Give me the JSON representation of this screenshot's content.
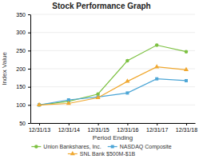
{
  "chart_data": {
    "type": "line",
    "title": "Stock Performance Graph",
    "xlabel": "Period Ending",
    "ylabel": "Index Value",
    "categories": [
      "12/31/13",
      "12/31/14",
      "12/31/15",
      "12/31/16",
      "12/31/17",
      "12/31/18"
    ],
    "series": [
      {
        "name": "Union Bankshares, Inc.",
        "color": "#7dc142",
        "marker": "circle",
        "values": [
          100,
          110,
          130,
          222,
          265,
          247
        ]
      },
      {
        "name": "NASDAQ Composite",
        "color": "#4da6d6",
        "marker": "square",
        "values": [
          100,
          114,
          122,
          133,
          172,
          167
        ]
      },
      {
        "name": "SNL Bank $500M-$1B",
        "color": "#f0a830",
        "marker": "triangle",
        "values": [
          100,
          104,
          120,
          165,
          205,
          197
        ]
      }
    ],
    "ylim": [
      50,
      350
    ],
    "yticks": [
      50,
      100,
      150,
      200,
      250,
      300,
      350
    ],
    "grid": true,
    "legend": "bottom"
  }
}
